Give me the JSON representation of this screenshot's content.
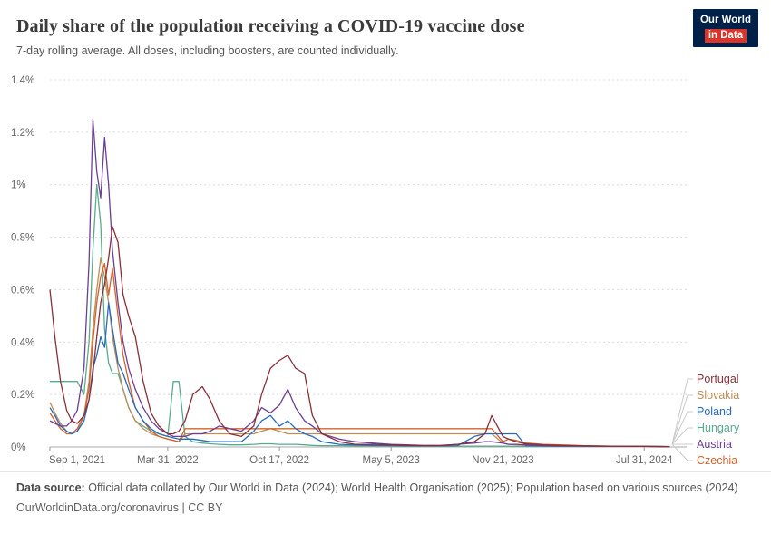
{
  "header": {
    "title": "Daily share of the population receiving a COVID-19 vaccine dose",
    "subtitle": "7-day rolling average. All doses, including boosters, are counted individually.",
    "logo": {
      "line1": "Our World",
      "line2": "in Data"
    }
  },
  "colors": {
    "logo_navy": "#002147",
    "logo_red": "#d8362a",
    "gridline": "#dcdcdc",
    "axis_text": "#666666",
    "zero_line": "#a8a8a8",
    "legend_connector": "#cccccc"
  },
  "footer": {
    "source_label": "Data source:",
    "source_text": "Official data collated by Our World in Data (2024); World Health Organisation (2025); Population based on various sources (2024)",
    "license_line": "OurWorldinData.org/coronavirus | CC BY"
  },
  "chart_data": {
    "type": "line",
    "title": "Daily share of the population receiving a COVID-19 vaccine dose",
    "subtitle": "7-day rolling average. All doses, including boosters, are counted individually.",
    "xlabel": "",
    "ylabel": "",
    "unit": "%",
    "grid": true,
    "legend_position": "right",
    "ylim": [
      0,
      1.4
    ],
    "x_domain": [
      "2021-09-01",
      "2024-10-15"
    ],
    "y_ticks": {
      "values": [
        0,
        0.2,
        0.4,
        0.6,
        0.8,
        1.0,
        1.2,
        1.4
      ],
      "labels": [
        "0%",
        "0.2%",
        "0.4%",
        "0.6%",
        "0.8%",
        "1%",
        "1.2%",
        "1.4%"
      ]
    },
    "x_ticks": [
      {
        "date": "2021-09-01",
        "label": "Sep 1, 2021"
      },
      {
        "date": "2022-03-31",
        "label": "Mar 31, 2022"
      },
      {
        "date": "2022-10-17",
        "label": "Oct 17, 2022"
      },
      {
        "date": "2023-05-05",
        "label": "May 5, 2023"
      },
      {
        "date": "2023-11-21",
        "label": "Nov 21, 2023"
      },
      {
        "date": "2024-07-31",
        "label": "Jul 31, 2024"
      }
    ],
    "x": [
      "2021-09-01",
      "2021-09-10",
      "2021-09-20",
      "2021-10-01",
      "2021-10-10",
      "2021-10-20",
      "2021-11-01",
      "2021-11-10",
      "2021-11-17",
      "2021-11-24",
      "2021-12-01",
      "2021-12-08",
      "2021-12-15",
      "2021-12-22",
      "2022-01-01",
      "2022-01-10",
      "2022-01-20",
      "2022-02-01",
      "2022-02-15",
      "2022-03-01",
      "2022-03-15",
      "2022-03-31",
      "2022-04-10",
      "2022-04-20",
      "2022-05-01",
      "2022-05-15",
      "2022-06-01",
      "2022-06-15",
      "2022-07-01",
      "2022-07-20",
      "2022-08-10",
      "2022-09-01",
      "2022-09-15",
      "2022-10-01",
      "2022-10-17",
      "2022-11-01",
      "2022-11-15",
      "2022-12-01",
      "2022-12-15",
      "2023-01-01",
      "2023-02-01",
      "2023-03-01",
      "2023-04-01",
      "2023-05-05",
      "2023-06-01",
      "2023-07-01",
      "2023-08-01",
      "2023-09-01",
      "2023-10-01",
      "2023-10-20",
      "2023-11-01",
      "2023-11-21",
      "2023-12-01",
      "2023-12-15",
      "2024-01-01",
      "2024-02-01",
      "2024-03-01",
      "2024-04-15",
      "2024-06-01",
      "2024-07-31",
      "2024-09-15"
    ],
    "series": [
      {
        "name": "Portugal",
        "color": "#883039",
        "values": [
          0.6,
          0.42,
          0.25,
          0.14,
          0.1,
          0.09,
          0.12,
          0.18,
          0.28,
          0.42,
          0.55,
          0.62,
          0.72,
          0.84,
          0.78,
          0.58,
          0.5,
          0.42,
          0.25,
          0.13,
          0.08,
          0.05,
          0.05,
          0.06,
          0.1,
          0.2,
          0.23,
          0.18,
          0.1,
          0.05,
          0.04,
          0.08,
          0.2,
          0.3,
          0.33,
          0.35,
          0.3,
          0.28,
          0.12,
          0.05,
          0.02,
          0.01,
          0.01,
          0.008,
          0.006,
          0.005,
          0.005,
          0.01,
          0.02,
          0.05,
          0.12,
          0.04,
          0.03,
          0.02,
          0.012,
          0.008,
          0.006,
          0.004,
          0.003,
          0.002,
          0.001
        ]
      },
      {
        "name": "Slovakia",
        "color": "#BC8E5A",
        "values": [
          0.17,
          0.13,
          0.09,
          0.06,
          0.05,
          0.06,
          0.12,
          0.25,
          0.45,
          0.6,
          0.72,
          0.65,
          0.55,
          0.42,
          0.3,
          0.22,
          0.15,
          0.1,
          0.07,
          0.05,
          0.04,
          0.03,
          0.025,
          0.02,
          0.05,
          0.05,
          0.05,
          0.05,
          0.05,
          0.05,
          0.05,
          0.05,
          0.06,
          0.07,
          0.06,
          0.05,
          0.05,
          0.05,
          0.05,
          0.05,
          0.05,
          0.05,
          0.05,
          0.05,
          0.05,
          0.05,
          0.05,
          0.05,
          0.05,
          0.05,
          0.05,
          0.015,
          0.01,
          0.008,
          0.006,
          0.005,
          0.004,
          0.003,
          0.002,
          0.002,
          0.001
        ]
      },
      {
        "name": "Poland",
        "color": "#286BBB",
        "values": [
          0.15,
          0.12,
          0.08,
          0.06,
          0.05,
          0.06,
          0.1,
          0.18,
          0.3,
          0.35,
          0.42,
          0.38,
          0.55,
          0.45,
          0.32,
          0.28,
          0.22,
          0.15,
          0.1,
          0.07,
          0.05,
          0.04,
          0.035,
          0.03,
          0.03,
          0.03,
          0.025,
          0.02,
          0.02,
          0.02,
          0.02,
          0.06,
          0.1,
          0.12,
          0.08,
          0.1,
          0.07,
          0.05,
          0.04,
          0.02,
          0.01,
          0.008,
          0.006,
          0.005,
          0.004,
          0.004,
          0.004,
          0.005,
          0.04,
          0.05,
          0.05,
          0.05,
          0.05,
          0.05,
          0.005,
          0.004,
          0.003,
          0.003,
          0.002,
          0.002,
          0.001
        ]
      },
      {
        "name": "Hungary",
        "color": "#58AC8C",
        "values": [
          0.25,
          0.25,
          0.25,
          0.25,
          0.25,
          0.25,
          0.2,
          0.4,
          0.75,
          1.0,
          0.85,
          0.45,
          0.32,
          0.28,
          0.28,
          0.22,
          0.15,
          0.1,
          0.08,
          0.06,
          0.05,
          0.04,
          0.25,
          0.25,
          0.04,
          0.02,
          0.015,
          0.012,
          0.01,
          0.008,
          0.008,
          0.01,
          0.012,
          0.012,
          0.01,
          0.01,
          0.01,
          0.008,
          0.006,
          0.005,
          0.005,
          0.004,
          0.004,
          0.004,
          0.003,
          0.003,
          0.003,
          0.003,
          0.003,
          0.003,
          0.003,
          0.003,
          0.003,
          0.002,
          0.002,
          0.002,
          0.002,
          0.002,
          0.002,
          0.002,
          0.001
        ]
      },
      {
        "name": "Austria",
        "color": "#6D3E91",
        "values": [
          0.1,
          0.09,
          0.08,
          0.08,
          0.1,
          0.14,
          0.3,
          0.7,
          1.25,
          1.05,
          0.95,
          1.18,
          1.0,
          0.75,
          0.55,
          0.4,
          0.3,
          0.22,
          0.15,
          0.1,
          0.07,
          0.05,
          0.04,
          0.04,
          0.04,
          0.05,
          0.05,
          0.06,
          0.08,
          0.07,
          0.06,
          0.1,
          0.15,
          0.13,
          0.16,
          0.22,
          0.15,
          0.1,
          0.08,
          0.05,
          0.03,
          0.02,
          0.015,
          0.01,
          0.008,
          0.006,
          0.006,
          0.01,
          0.015,
          0.02,
          0.02,
          0.015,
          0.01,
          0.01,
          0.008,
          0.005,
          0.004,
          0.003,
          0.002,
          0.002,
          0.001
        ]
      },
      {
        "name": "Czechia",
        "color": "#D3632C",
        "values": [
          0.13,
          0.1,
          0.07,
          0.05,
          0.05,
          0.07,
          0.12,
          0.22,
          0.4,
          0.55,
          0.65,
          0.7,
          0.58,
          0.68,
          0.5,
          0.35,
          0.25,
          0.15,
          0.1,
          0.06,
          0.04,
          0.03,
          0.025,
          0.02,
          0.07,
          0.07,
          0.07,
          0.07,
          0.07,
          0.07,
          0.07,
          0.07,
          0.07,
          0.07,
          0.07,
          0.07,
          0.07,
          0.07,
          0.07,
          0.07,
          0.07,
          0.07,
          0.07,
          0.07,
          0.07,
          0.07,
          0.07,
          0.07,
          0.07,
          0.07,
          0.07,
          0.02,
          0.03,
          0.025,
          0.015,
          0.01,
          0.008,
          0.005,
          0.003,
          0.002,
          0.001
        ]
      }
    ]
  }
}
